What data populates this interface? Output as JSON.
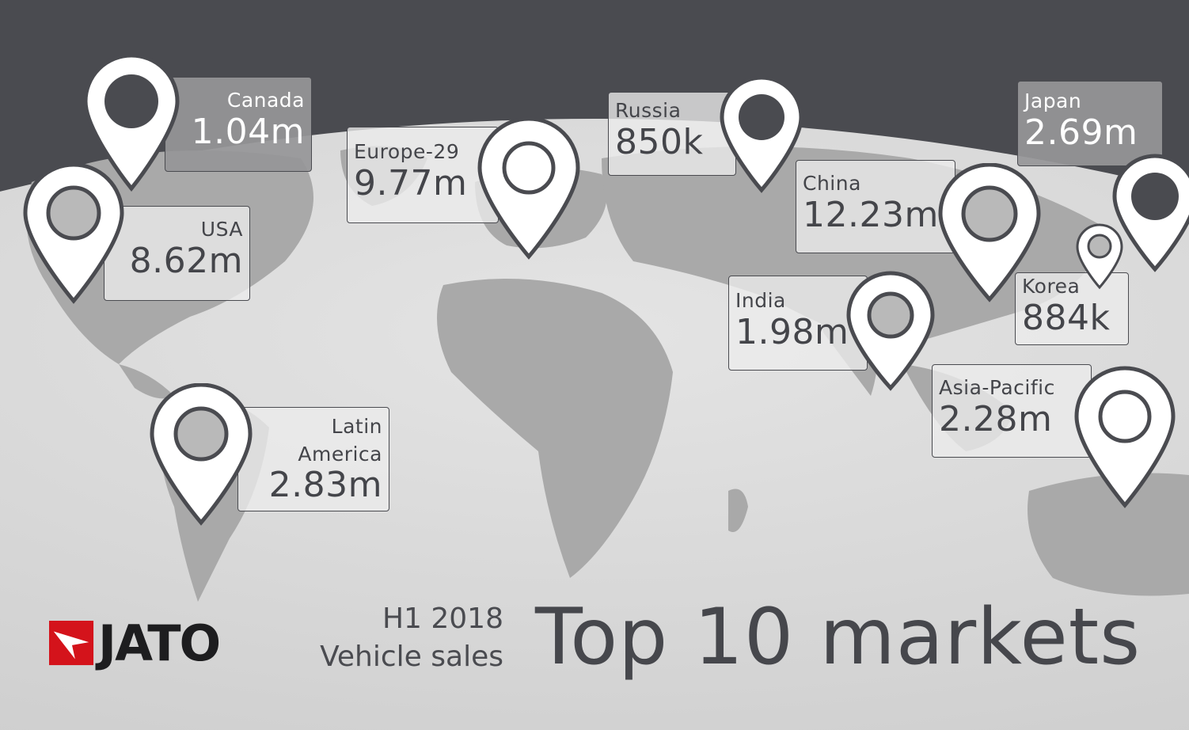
{
  "colors": {
    "background": "#4a4b50",
    "globe": "#d9d9d9",
    "land": "#a9a9a9",
    "text": "#44454a",
    "brand_red": "#d4131b"
  },
  "branding": {
    "logo_text": "JATO",
    "period": "H1 2018",
    "subject": "Vehicle sales"
  },
  "title": "Top 10 markets",
  "markets": [
    {
      "name": "Canada",
      "value": "1.04m"
    },
    {
      "name": "USA",
      "value": "8.62m"
    },
    {
      "name": "Latin\nAmerica",
      "value": "2.83m"
    },
    {
      "name": "Europe-29",
      "value": "9.77m"
    },
    {
      "name": "Russia",
      "value": "850k"
    },
    {
      "name": "China",
      "value": "12.23m"
    },
    {
      "name": "India",
      "value": "1.98m"
    },
    {
      "name": "Japan",
      "value": "2.69m"
    },
    {
      "name": "Korea",
      "value": "884k"
    },
    {
      "name": "Asia-Pacific",
      "value": "2.28m"
    }
  ]
}
